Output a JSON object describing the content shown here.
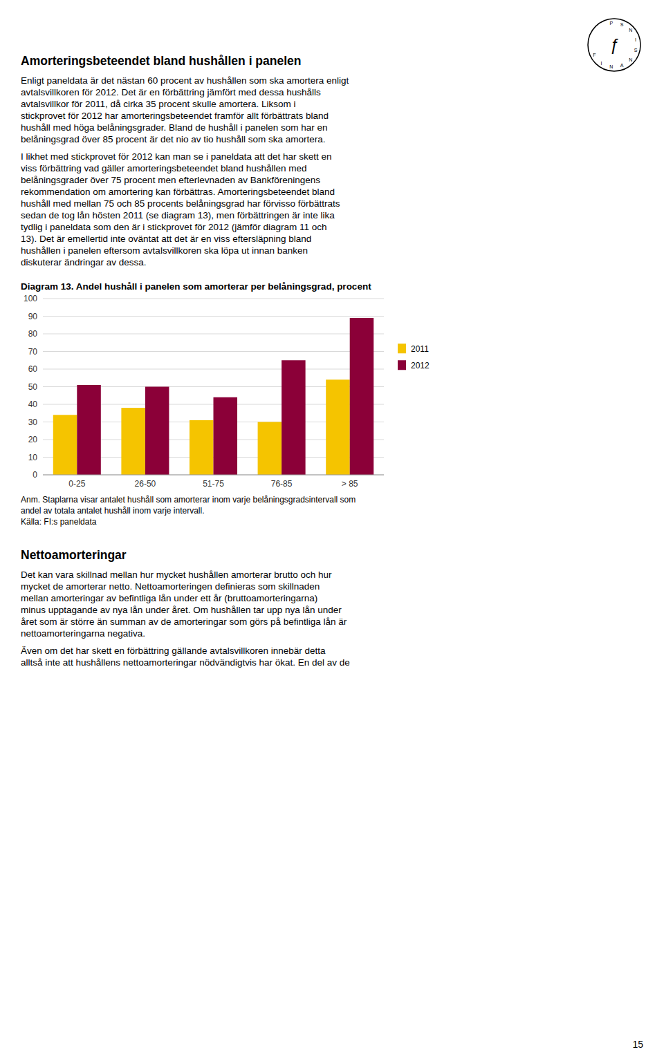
{
  "page": {
    "title": "Amorteringsbeteendet bland hushållen i panelen",
    "logo_text": "ƒ",
    "logo_ring": "FINANSINSP",
    "body1": [
      "Enligt paneldata är det nästan 60 procent av hushållen som ska amortera enligt",
      "avtalsvillkoren för 2012. Det är en förbättring jämfört med dessa hushålls",
      "avtalsvillkor för 2011, då cirka 35 procent skulle amortera. Liksom i",
      "stickprovet för 2012 har amorteringsbeteendet framför allt förbättrats bland",
      "hushåll med höga belåningsgrader. Bland de hushåll i panelen som har en",
      "belåningsgrad över 85 procent är det nio av tio hushåll som ska amortera."
    ],
    "body2": [
      "I likhet med stickprovet för 2012 kan man se i paneldata att det har skett en",
      "viss förbättring vad gäller amorteringsbeteendet bland hushållen med",
      "belåningsgrader över 75 procent men efterlevnaden av Bankföreningens",
      "rekommendation om amortering kan förbättras. Amorteringsbeteendet bland",
      "hushåll med mellan 75 och 85 procents belåningsgrad har förvisso förbättrats",
      "sedan de tog lån hösten 2011 (se diagram 13), men förbättringen är inte lika",
      "tydlig i paneldata som den är i stickprovet för 2012 (jämför diagram 11 och",
      "13). Det är emellertid inte oväntat att det är en viss eftersläpning bland",
      "hushållen i panelen eftersom avtalsvillkoren ska löpa ut innan banken",
      "diskuterar ändringar av dessa."
    ],
    "section_title": "Nettoamorteringar",
    "body3": [
      "Det kan vara skillnad mellan hur mycket hushållen amorterar brutto och hur",
      "mycket de amorterar netto. Nettoamorteringen definieras som skillnaden",
      "mellan amorteringar av befintliga lån under ett år (bruttoamorteringarna)",
      "minus upptagande av nya lån under året. Om hushållen tar upp nya lån under",
      "året som är större än summan av de amorteringar som görs på befintliga lån är",
      "nettoamorteringarna negativa."
    ],
    "body4": [
      "Även om det har skett en förbättring gällande avtalsvillkoren innebär detta",
      "alltså inte att hushållens nettoamorteringar nödvändigtvis har ökat. En del av de"
    ],
    "page_number": "15"
  },
  "chart_data": {
    "type": "bar",
    "title": "Diagram 13. Andel hushåll i panelen som amorterar per belåningsgrad, procent",
    "categories": [
      "0-25",
      "26-50",
      "51-75",
      "76-85",
      "> 85"
    ],
    "series": [
      {
        "name": "2011",
        "color": "#F5C400",
        "values": [
          34,
          38,
          31,
          30,
          54
        ]
      },
      {
        "name": "2012",
        "color": "#8B0038",
        "values": [
          51,
          50,
          44,
          65,
          89
        ]
      }
    ],
    "ylim": [
      0,
      100
    ],
    "yticks": [
      0,
      10,
      20,
      30,
      40,
      50,
      60,
      70,
      80,
      90,
      100
    ],
    "grid": true,
    "legend": "right",
    "annotations": [
      "Anm. Staplarna visar antalet hushåll som amorterar inom varje belåningsgradsintervall som",
      "andel av totala antalet hushåll inom varje intervall.",
      "Källa: FI:s paneldata"
    ]
  }
}
